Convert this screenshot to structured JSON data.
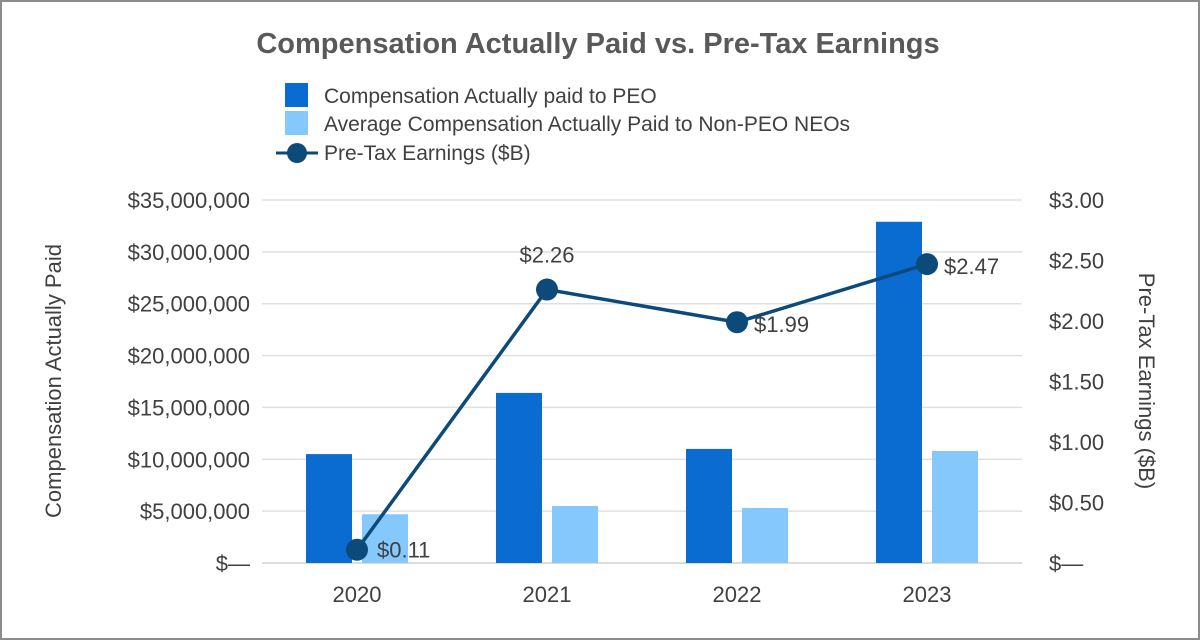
{
  "chart_data": {
    "type": "bar",
    "title": "Compensation Actually Paid vs. Pre-Tax Earnings",
    "categories": [
      "2020",
      "2021",
      "2022",
      "2023"
    ],
    "series": [
      {
        "name": "Compensation Actually paid to PEO",
        "type": "bar",
        "axis": "left",
        "color": "#0a6bd1",
        "values": [
          10500000,
          16400000,
          11000000,
          32900000
        ]
      },
      {
        "name": "Average Compensation Actually Paid to Non-PEO NEOs",
        "type": "bar",
        "axis": "left",
        "color": "#85c8fc",
        "values": [
          4700000,
          5500000,
          5300000,
          10800000
        ]
      },
      {
        "name": "Pre-Tax Earnings ($B)",
        "type": "line",
        "axis": "right",
        "color": "#0c4a7a",
        "values": [
          0.11,
          2.26,
          1.99,
          2.47
        ],
        "labels": [
          "$0.11",
          "$2.26",
          "$1.99",
          "$2.47"
        ]
      }
    ],
    "ylabel": "Compensation Actually Paid",
    "y2label": "Pre-Tax Earnings ($B)",
    "ylim": [
      0,
      35000000
    ],
    "y2lim": [
      0,
      3
    ],
    "yticks": [
      "$—",
      "$5,000,000",
      "$10,000,000",
      "$15,000,000",
      "$20,000,000",
      "$25,000,000",
      "$30,000,000",
      "$35,000,000"
    ],
    "y2ticks": [
      "$—",
      "$0.50",
      "$1.00",
      "$1.50",
      "$2.00",
      "$2.50",
      "$3.00"
    ],
    "grid": true,
    "legend_position": "top"
  }
}
